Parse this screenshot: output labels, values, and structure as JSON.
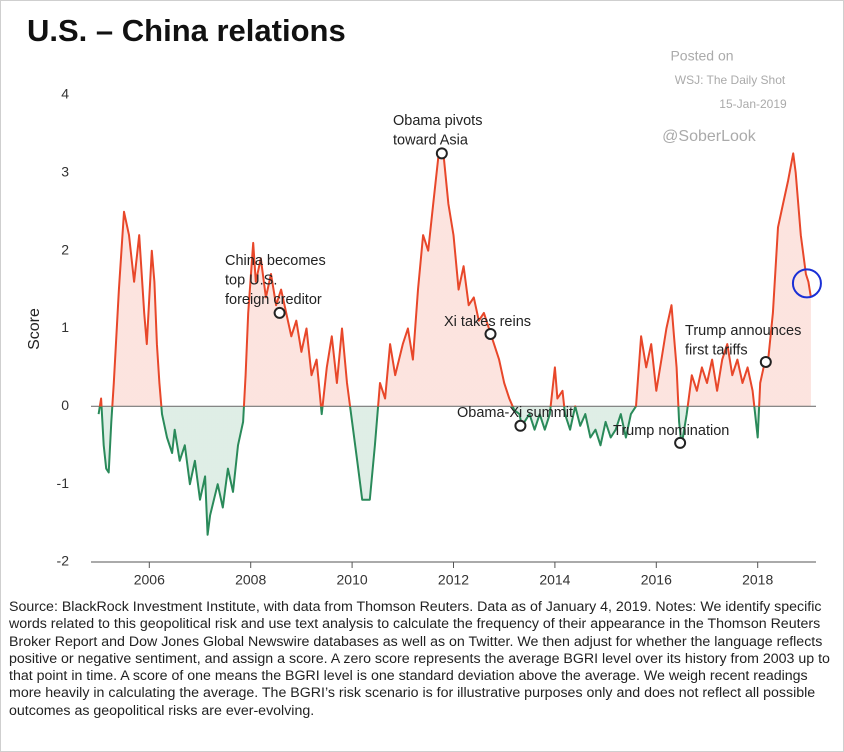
{
  "chart_data": {
    "type": "line",
    "title": "U.S. – China relations",
    "ylabel": "Score",
    "watermark": [
      "Posted on",
      "WSJ: The Daily Shot",
      "15-Jan-2019",
      "@SoberLook"
    ],
    "source": "Source: BlackRock Investment Institute, with data from Thomson Reuters. Data as of January 4, 2019. Notes: We identify specific words related to this geopolitical risk and use text analysis to calculate the frequency of their appearance in the Thomson Reuters Broker Report and Dow Jones Global Newswire databases as well as on Twitter. We then adjust for whether the language reflects positive or negative sentiment, and assign a score. A zero score represents the average BGRI level over its history from 2003 up to that point in time. A score of one means the BGRI level is one standard deviation above the average. We weigh recent readings more heavily in calculating the average. The BGRI’s risk scenario is for illustrative purposes only and does not reflect all possible outcomes as geopolitical risks are ever-evolving.",
    "colors": {
      "positive": "#e8472a",
      "negative": "#2a8a5a"
    },
    "xlim": [
      2004.85,
      2019.15
    ],
    "xticks": [
      2006,
      2008,
      2010,
      2012,
      2014,
      2016,
      2018
    ],
    "ylim": [
      -2,
      4
    ],
    "yticks": [
      -2,
      -1,
      0,
      1,
      2,
      3,
      4
    ],
    "x": [
      2005.0,
      2005.05,
      2005.1,
      2005.15,
      2005.2,
      2005.25,
      2005.3,
      2005.4,
      2005.5,
      2005.6,
      2005.7,
      2005.8,
      2005.9,
      2005.95,
      2006.0,
      2006.05,
      2006.1,
      2006.15,
      2006.2,
      2006.25,
      2006.35,
      2006.45,
      2006.5,
      2006.6,
      2006.7,
      2006.8,
      2006.9,
      2007.0,
      2007.1,
      2007.15,
      2007.2,
      2007.35,
      2007.45,
      2007.55,
      2007.65,
      2007.75,
      2007.85,
      2007.9,
      2007.95,
      2008.05,
      2008.1,
      2008.2,
      2008.3,
      2008.4,
      2008.5,
      2008.6,
      2008.7,
      2008.8,
      2008.9,
      2009.0,
      2009.1,
      2009.2,
      2009.3,
      2009.4,
      2009.5,
      2009.6,
      2009.7,
      2009.8,
      2009.9,
      2010.0,
      2010.1,
      2010.2,
      2010.35,
      2010.45,
      2010.55,
      2010.65,
      2010.75,
      2010.85,
      2011.0,
      2011.1,
      2011.2,
      2011.3,
      2011.4,
      2011.5,
      2011.6,
      2011.7,
      2011.8,
      2011.9,
      2012.0,
      2012.1,
      2012.2,
      2012.3,
      2012.4,
      2012.5,
      2012.6,
      2012.7,
      2012.75,
      2012.9,
      2013.0,
      2013.1,
      2013.2,
      2013.3,
      2013.35,
      2013.5,
      2013.6,
      2013.7,
      2013.8,
      2013.9,
      2014.0,
      2014.05,
      2014.15,
      2014.2,
      2014.3,
      2014.4,
      2014.5,
      2014.6,
      2014.7,
      2014.8,
      2014.9,
      2015.0,
      2015.1,
      2015.2,
      2015.3,
      2015.4,
      2015.5,
      2015.6,
      2015.7,
      2015.8,
      2015.9,
      2016.0,
      2016.1,
      2016.2,
      2016.3,
      2016.35,
      2016.4,
      2016.45,
      2016.5,
      2016.6,
      2016.7,
      2016.8,
      2016.9,
      2017.0,
      2017.1,
      2017.2,
      2017.3,
      2017.4,
      2017.5,
      2017.6,
      2017.7,
      2017.8,
      2017.9,
      2018.0,
      2018.05,
      2018.15,
      2018.2,
      2018.3,
      2018.4,
      2018.5,
      2018.6,
      2018.7,
      2018.75,
      2018.85,
      2018.95,
      2019.0,
      2019.05
    ],
    "values": [
      -0.1,
      0.1,
      -0.5,
      -0.8,
      -0.85,
      -0.2,
      0.3,
      1.5,
      2.5,
      2.2,
      1.6,
      2.2,
      1.2,
      0.8,
      1.4,
      2.0,
      1.6,
      0.8,
      0.3,
      -0.1,
      -0.4,
      -0.6,
      -0.3,
      -0.7,
      -0.5,
      -1.0,
      -0.7,
      -1.2,
      -0.9,
      -1.65,
      -1.4,
      -1.0,
      -1.3,
      -0.8,
      -1.1,
      -0.5,
      -0.2,
      0.4,
      1.2,
      2.1,
      1.6,
      1.9,
      1.4,
      1.7,
      1.3,
      1.5,
      1.2,
      0.9,
      1.1,
      0.7,
      1.0,
      0.4,
      0.6,
      -0.1,
      0.5,
      0.9,
      0.3,
      1.0,
      0.3,
      -0.2,
      -0.7,
      -1.2,
      -1.2,
      -0.5,
      0.3,
      0.1,
      0.8,
      0.4,
      0.8,
      1.0,
      0.6,
      1.5,
      2.2,
      2.0,
      2.6,
      3.2,
      3.25,
      2.6,
      2.2,
      1.5,
      1.8,
      1.3,
      1.4,
      1.1,
      1.2,
      1.0,
      0.9,
      0.6,
      0.3,
      0.1,
      -0.05,
      -0.1,
      -0.25,
      -0.1,
      -0.3,
      -0.1,
      -0.3,
      -0.1,
      0.5,
      0.1,
      0.2,
      -0.1,
      -0.3,
      0.0,
      -0.25,
      -0.1,
      -0.4,
      -0.3,
      -0.5,
      -0.2,
      -0.4,
      -0.3,
      -0.1,
      -0.4,
      -0.1,
      0.0,
      0.9,
      0.5,
      0.8,
      0.2,
      0.6,
      1.0,
      1.3,
      0.9,
      0.5,
      -0.2,
      -0.5,
      -0.1,
      0.4,
      0.2,
      0.5,
      0.3,
      0.6,
      0.2,
      0.6,
      0.8,
      0.4,
      0.6,
      0.3,
      0.5,
      0.2,
      -0.4,
      0.3,
      0.6,
      0.55,
      1.2,
      2.3,
      2.6,
      2.9,
      3.25,
      3.0,
      2.2,
      1.7,
      1.6,
      1.4
    ],
    "annotations": [
      {
        "lines": [
          "China becomes",
          "top U.S.",
          "foreign creditor"
        ],
        "x": 2008.57,
        "y": 1.2
      },
      {
        "lines": [
          "Obama pivots",
          "toward Asia"
        ],
        "x": 2011.77,
        "y": 3.25
      },
      {
        "lines": [
          "Xi takes reins"
        ],
        "x": 2012.73,
        "y": 0.93
      },
      {
        "lines": [
          "Obama-Xi summit"
        ],
        "x": 2013.32,
        "y": -0.25
      },
      {
        "lines": [
          "Trump nomination"
        ],
        "x": 2016.47,
        "y": -0.47
      },
      {
        "lines": [
          "Trump announces",
          "first tariffs"
        ],
        "x": 2018.16,
        "y": 0.57
      }
    ]
  }
}
